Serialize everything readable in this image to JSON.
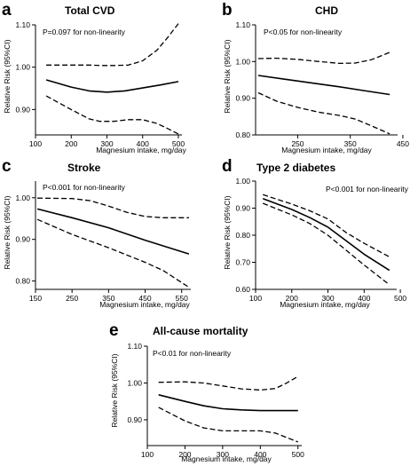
{
  "chart_data": [
    {
      "type": "line",
      "panel": "a",
      "title": "Total CVD",
      "annotation": "P=0.097 for non-linearity",
      "xlabel": "Magnesium intake, mg/day",
      "ylabel": "Relative Risk (95%CI)",
      "xlim": [
        100,
        510
      ],
      "ylim": [
        0.84,
        1.1
      ],
      "xticks": [
        "100",
        "200",
        "300",
        "400",
        "500"
      ],
      "yticks": [
        "0.90",
        "1.00",
        "1.10"
      ],
      "series": [
        {
          "style": "solid",
          "x": [
            130,
            200,
            250,
            300,
            350,
            400,
            450,
            500
          ],
          "y": [
            0.97,
            0.953,
            0.944,
            0.941,
            0.944,
            0.951,
            0.958,
            0.966
          ]
        },
        {
          "style": "dashed",
          "x": [
            130,
            200,
            250,
            280,
            320,
            360,
            400,
            440,
            470,
            500
          ],
          "y": [
            1.005,
            1.005,
            1.005,
            1.004,
            1.004,
            1.005,
            1.015,
            1.04,
            1.07,
            1.103
          ]
        },
        {
          "style": "dashed",
          "x": [
            130,
            200,
            250,
            280,
            320,
            360,
            400,
            440,
            470,
            500
          ],
          "y": [
            0.932,
            0.9,
            0.878,
            0.872,
            0.872,
            0.876,
            0.876,
            0.867,
            0.855,
            0.842
          ]
        }
      ]
    },
    {
      "type": "line",
      "panel": "b",
      "title": "CHD",
      "annotation": "P<0.05 for non-linearity",
      "xlabel": "Magnesium intake, mg/day",
      "ylabel": "Relative Risk (95%CI)",
      "xlim": [
        170,
        440
      ],
      "ylim": [
        0.8,
        1.1
      ],
      "xticks": [
        "250",
        "350",
        "450"
      ],
      "yticks": [
        "0.80",
        "0.90",
        "1.00",
        "1.10"
      ],
      "series": [
        {
          "style": "solid",
          "x": [
            175,
            225,
            275,
            325,
            375,
            425
          ],
          "y": [
            0.962,
            0.952,
            0.942,
            0.932,
            0.921,
            0.91
          ]
        },
        {
          "style": "dashed",
          "x": [
            175,
            210,
            250,
            290,
            330,
            360,
            390,
            425
          ],
          "y": [
            1.008,
            1.009,
            1.006,
            1.0,
            0.995,
            0.996,
            1.005,
            1.025
          ]
        },
        {
          "style": "dashed",
          "x": [
            175,
            210,
            250,
            290,
            330,
            360,
            390,
            425
          ],
          "y": [
            0.915,
            0.892,
            0.875,
            0.862,
            0.853,
            0.843,
            0.825,
            0.803
          ]
        }
      ]
    },
    {
      "type": "line",
      "panel": "c",
      "title": "Stroke",
      "annotation": "P<0.001 for non-linearity",
      "xlabel": "Magnesium intake, mg/day",
      "ylabel": "Relative Risk (95%CI)",
      "xlim": [
        150,
        575
      ],
      "ylim": [
        0.78,
        1.04
      ],
      "xticks": [
        "150",
        "250",
        "350",
        "450",
        "550"
      ],
      "yticks": [
        "0.80",
        "0.90",
        "1.00"
      ],
      "series": [
        {
          "style": "solid",
          "x": [
            155,
            250,
            350,
            450,
            570
          ],
          "y": [
            0.973,
            0.952,
            0.928,
            0.898,
            0.865
          ]
        },
        {
          "style": "dashed",
          "x": [
            155,
            250,
            300,
            350,
            400,
            450,
            500,
            570
          ],
          "y": [
            0.999,
            0.998,
            0.993,
            0.98,
            0.965,
            0.955,
            0.952,
            0.952
          ]
        },
        {
          "style": "dashed",
          "x": [
            155,
            250,
            350,
            450,
            500,
            570
          ],
          "y": [
            0.948,
            0.912,
            0.88,
            0.845,
            0.825,
            0.785
          ]
        }
      ]
    },
    {
      "type": "line",
      "panel": "d",
      "title": "Type 2 diabetes",
      "annotation": "P<0.001 for non-linearity",
      "xlabel": "Magnesium intake, mg/day",
      "ylabel": "Relative Risk (95%CI)",
      "xlim": [
        100,
        490
      ],
      "ylim": [
        0.6,
        1.0
      ],
      "xticks": [
        "100",
        "200",
        "300",
        "400",
        "500"
      ],
      "yticks": [
        "0.60",
        "0.70",
        "0.80",
        "0.90",
        "1.00"
      ],
      "series": [
        {
          "style": "solid",
          "x": [
            120,
            200,
            250,
            300,
            350,
            400,
            470
          ],
          "y": [
            0.935,
            0.895,
            0.865,
            0.83,
            0.78,
            0.73,
            0.67
          ]
        },
        {
          "style": "dashed",
          "x": [
            120,
            200,
            250,
            300,
            350,
            400,
            470
          ],
          "y": [
            0.95,
            0.915,
            0.89,
            0.86,
            0.81,
            0.77,
            0.72
          ]
        },
        {
          "style": "dashed",
          "x": [
            120,
            200,
            250,
            300,
            350,
            400,
            470
          ],
          "y": [
            0.918,
            0.875,
            0.843,
            0.8,
            0.745,
            0.69,
            0.617
          ]
        }
      ]
    },
    {
      "type": "line",
      "panel": "e",
      "title": "All-cause mortality",
      "annotation": "P<0.01 for non-linearity",
      "xlabel": "Magnesium intake, mg/day",
      "ylabel": "Relative Risk (95%CI)",
      "xlim": [
        100,
        510
      ],
      "ylim": [
        0.83,
        1.1
      ],
      "xticks": [
        "100",
        "200",
        "300",
        "400",
        "500"
      ],
      "yticks": [
        "0.90",
        "1.00",
        "1.10"
      ],
      "series": [
        {
          "style": "solid",
          "x": [
            130,
            200,
            250,
            300,
            350,
            400,
            450,
            500
          ],
          "y": [
            0.968,
            0.95,
            0.938,
            0.93,
            0.927,
            0.925,
            0.925,
            0.925
          ]
        },
        {
          "style": "dashed",
          "x": [
            130,
            200,
            250,
            300,
            350,
            400,
            440,
            470,
            500
          ],
          "y": [
            1.002,
            1.003,
            1.0,
            0.992,
            0.984,
            0.981,
            0.985,
            1.0,
            1.018
          ]
        },
        {
          "style": "dashed",
          "x": [
            130,
            200,
            250,
            300,
            350,
            400,
            440,
            470,
            500
          ],
          "y": [
            0.934,
            0.897,
            0.878,
            0.87,
            0.87,
            0.87,
            0.864,
            0.852,
            0.84
          ]
        }
      ]
    }
  ]
}
